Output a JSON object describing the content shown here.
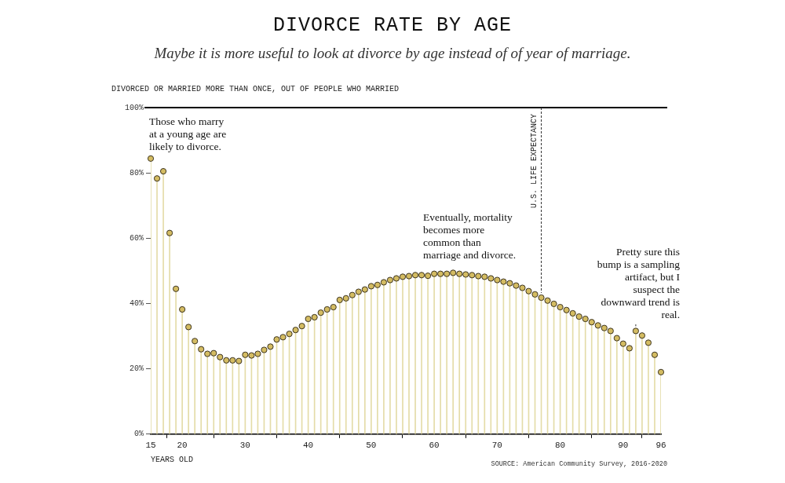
{
  "chart_data": {
    "type": "lollipop",
    "title": "DIVORCE RATE BY AGE",
    "subtitle": "Maybe it is more useful to look at divorce by age instead of of year of marriage.",
    "y_label": "DIVORCED OR MARRIED MORE THAN ONCE, OUT OF PEOPLE WHO MARRIED",
    "x_label": "YEARS OLD",
    "source": "SOURCE: American Community Survey, 2016-2020",
    "x": [
      15,
      16,
      17,
      18,
      19,
      20,
      21,
      22,
      23,
      24,
      25,
      26,
      27,
      28,
      29,
      30,
      31,
      32,
      33,
      34,
      35,
      36,
      37,
      38,
      39,
      40,
      41,
      42,
      43,
      44,
      45,
      46,
      47,
      48,
      49,
      50,
      51,
      52,
      53,
      54,
      55,
      56,
      57,
      58,
      59,
      60,
      61,
      62,
      63,
      64,
      65,
      66,
      67,
      68,
      69,
      70,
      71,
      72,
      73,
      74,
      75,
      76,
      77,
      78,
      79,
      80,
      81,
      82,
      83,
      84,
      85,
      86,
      87,
      88,
      89,
      90,
      91,
      92,
      93,
      94,
      95,
      96
    ],
    "values": [
      84.4,
      78.3,
      80.5,
      61.6,
      44.5,
      38.2,
      32.8,
      28.5,
      26,
      24.6,
      24.8,
      23.6,
      22.6,
      22.6,
      22.4,
      24.3,
      24.1,
      24.6,
      25.8,
      26.8,
      29,
      29.7,
      30.7,
      31.9,
      33.1,
      35.3,
      35.8,
      37.2,
      38.2,
      38.9,
      41.1,
      41.6,
      42.6,
      43.6,
      44.3,
      45.3,
      45.7,
      46.5,
      47.2,
      47.7,
      48.2,
      48.4,
      48.7,
      48.7,
      48.5,
      49.1,
      49.1,
      49.1,
      49.4,
      49.1,
      48.9,
      48.7,
      48.4,
      48.2,
      47.7,
      47.2,
      46.7,
      46.2,
      45.5,
      44.8,
      43.8,
      42.8,
      41.8,
      40.9,
      39.9,
      38.9,
      38,
      37,
      36,
      35.3,
      34.3,
      33.3,
      32.5,
      31.6,
      29.4,
      27.7,
      26.3,
      31.6,
      30.2,
      28,
      24.3,
      19
    ],
    "color": "#d4bc62",
    "marker": "circle",
    "xlim": [
      15,
      96
    ],
    "xticks": [
      15,
      20,
      30,
      40,
      50,
      60,
      70,
      80,
      90,
      96
    ],
    "ylim": [
      0,
      100
    ],
    "yticks": [
      {
        "value": 0,
        "label": "0%"
      },
      {
        "value": 20,
        "label": "20%"
      },
      {
        "value": 40,
        "label": "40%"
      },
      {
        "value": 60,
        "label": "60%"
      },
      {
        "value": 80,
        "label": "80%"
      },
      {
        "value": 100,
        "label": "100%"
      }
    ],
    "grid": false,
    "annotations": [
      {
        "text": "Those who marry\nat a young age are\nlikely to divorce."
      },
      {
        "text": "Eventually, mortality\nbecomes more\ncommon than\nmarriage and divorce."
      },
      {
        "text": "Pretty sure this\nbump is a sampling\nartifact, but I\nsuspect the\ndownward trend is\nreal.",
        "x": 92
      },
      {
        "text": "U.S. LIFE EXPECTANCY",
        "x": 77
      }
    ]
  }
}
